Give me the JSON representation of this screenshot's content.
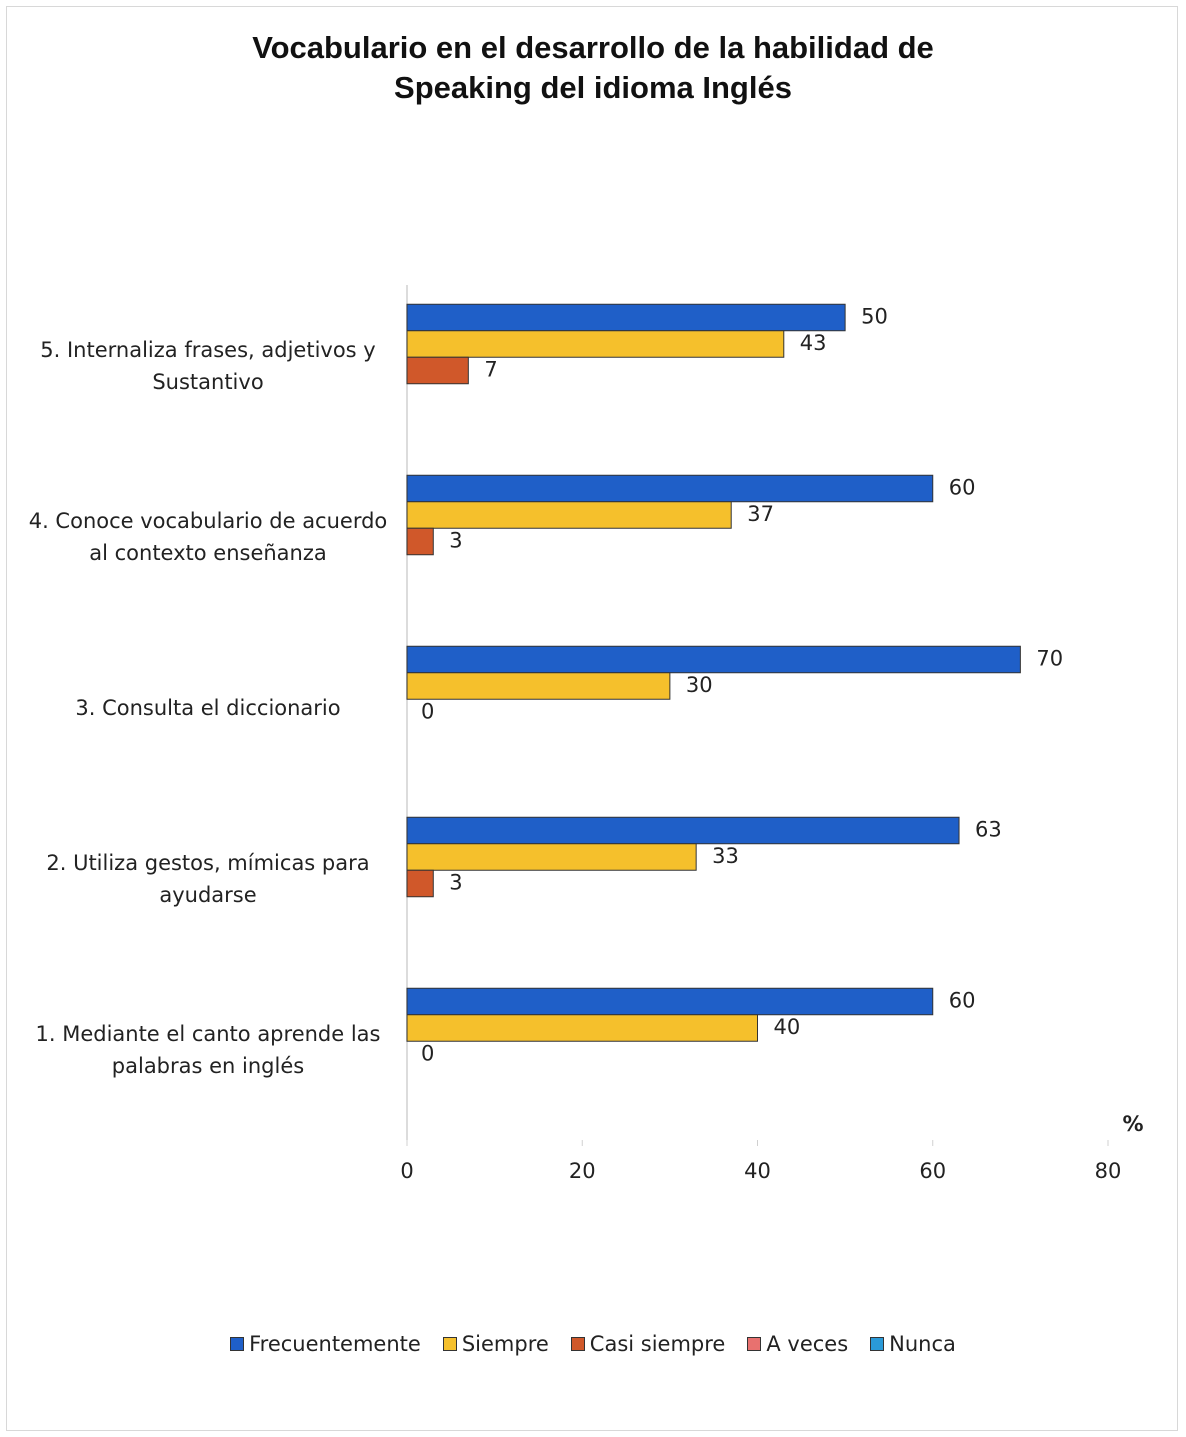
{
  "chart_data": {
    "type": "hbar",
    "title": "Vocabulario en el desarrollo de la habilidad  de Speaking del idioma Inglés",
    "xlabel": "%",
    "categories": [
      "1.  Mediante el canto aprende las palabras en inglés",
      "2.  Utiliza gestos, mímicas para ayudarse",
      "3.  Consulta el diccionario",
      "4.  Conoce vocabulario de acuerdo al contexto enseñanza",
      "5. Internaliza frases, adjetivos y Sustantivo"
    ],
    "series": [
      {
        "name": "Frecuentemente",
        "color": "#1f5fc8",
        "values": [
          60,
          63,
          70,
          60,
          50
        ]
      },
      {
        "name": "Siempre",
        "color": "#f5c02c",
        "values": [
          40,
          33,
          30,
          37,
          43
        ]
      },
      {
        "name": "Casi siempre",
        "color": "#d0582a",
        "values": [
          0,
          3,
          0,
          3,
          7
        ]
      },
      {
        "name": "A veces",
        "color": "#e8716f",
        "values": [
          null,
          null,
          null,
          null,
          null
        ]
      },
      {
        "name": "Nunca",
        "color": "#2a9ad8",
        "values": [
          null,
          null,
          null,
          null,
          null
        ]
      }
    ],
    "xlim": [
      0,
      80
    ],
    "xticks": [
      0,
      20,
      40,
      60,
      80
    ],
    "legend": "bottom"
  }
}
